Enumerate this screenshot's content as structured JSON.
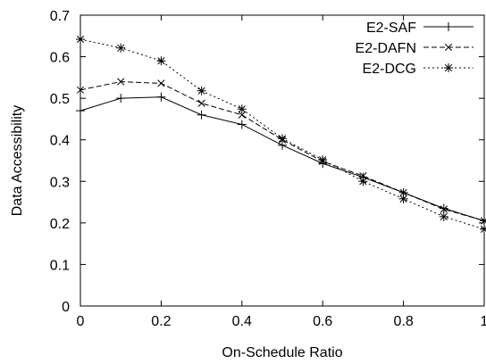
{
  "chart_data": {
    "type": "line",
    "title": "",
    "xlabel": "On-Schedule Ratio",
    "ylabel": "Data Accessibility",
    "xlim": [
      0,
      1
    ],
    "ylim": [
      0,
      0.7
    ],
    "x_ticks": [
      "0",
      "0.2",
      "0.4",
      "0.6",
      "0.8",
      "1"
    ],
    "y_ticks": [
      "0",
      "0.1",
      "0.2",
      "0.3",
      "0.4",
      "0.5",
      "0.6",
      "0.7"
    ],
    "grid": false,
    "legend_position": "top-right",
    "x": [
      0,
      0.1,
      0.2,
      0.3,
      0.4,
      0.5,
      0.6,
      0.7,
      0.8,
      0.9,
      1.0
    ],
    "series": [
      {
        "name": "E2-SAF",
        "marker": "plus",
        "line_style": "solid",
        "values": [
          0.47,
          0.5,
          0.503,
          0.46,
          0.437,
          0.387,
          0.343,
          0.31,
          0.273,
          0.235,
          0.205
        ]
      },
      {
        "name": "E2-DAFN",
        "marker": "cross",
        "line_style": "dashed",
        "values": [
          0.52,
          0.54,
          0.536,
          0.488,
          0.46,
          0.4,
          0.348,
          0.313,
          0.273,
          0.233,
          0.205
        ]
      },
      {
        "name": "E2-DCG",
        "marker": "star",
        "line_style": "dotted",
        "values": [
          0.642,
          0.621,
          0.59,
          0.518,
          0.474,
          0.403,
          0.352,
          0.3,
          0.258,
          0.215,
          0.185
        ]
      }
    ]
  }
}
